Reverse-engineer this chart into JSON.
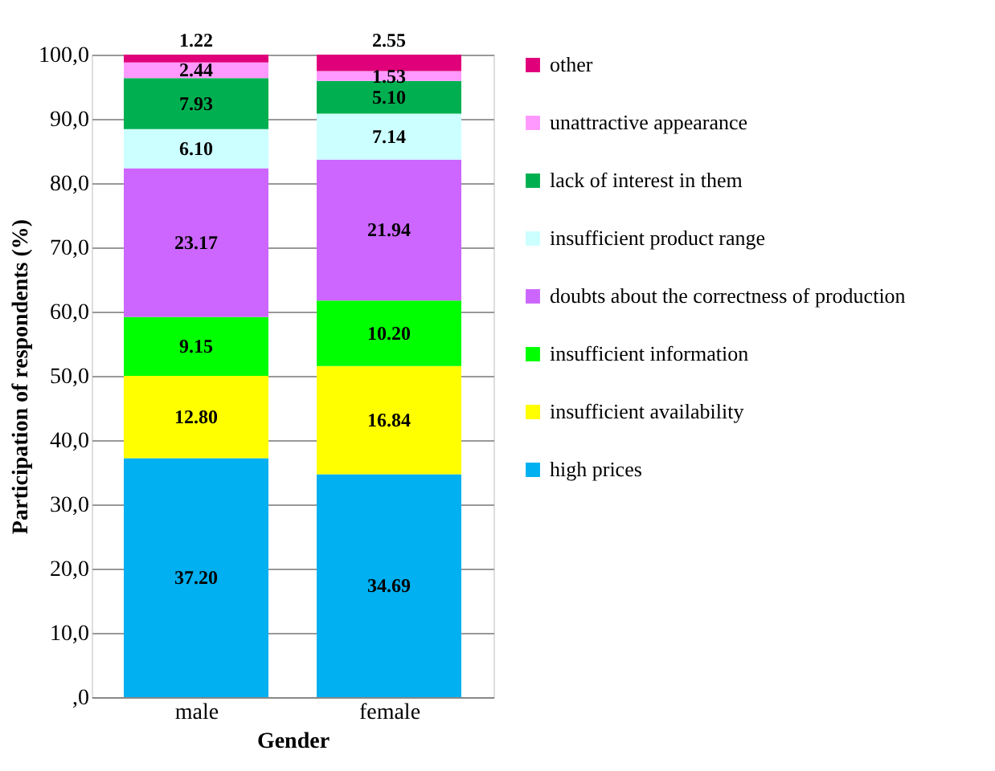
{
  "chart_data": {
    "type": "bar",
    "stacked": true,
    "xlabel": "Gender",
    "ylabel": "Participation of respondents (%)",
    "categories": [
      "male",
      "female"
    ],
    "series": [
      {
        "name": "high prices",
        "color": "#00b0f0",
        "values": [
          37.2,
          34.69
        ],
        "value_labels": [
          "37.20",
          "34.69"
        ]
      },
      {
        "name": "insufficient availability",
        "color": "#ffff00",
        "values": [
          12.8,
          16.84
        ],
        "value_labels": [
          "12.80",
          "16.84"
        ]
      },
      {
        "name": "insufficient information",
        "color": "#00ff00",
        "values": [
          9.15,
          10.2
        ],
        "value_labels": [
          "9.15",
          "10.20"
        ]
      },
      {
        "name": "doubts about the correctness of production",
        "color": "#cc66ff",
        "values": [
          23.17,
          21.94
        ],
        "value_labels": [
          "23.17",
          "21.94"
        ]
      },
      {
        "name": "insufficient product range",
        "color": "#ccffff",
        "values": [
          6.1,
          7.14
        ],
        "value_labels": [
          "6.10",
          "7.14"
        ]
      },
      {
        "name": "lack of interest in them",
        "color": "#00b050",
        "values": [
          7.93,
          5.1
        ],
        "value_labels": [
          "7.93",
          "5.10"
        ]
      },
      {
        "name": "unattractive appearance",
        "color": "#ff99ff",
        "values": [
          2.44,
          1.53
        ],
        "value_labels": [
          "2.44",
          "1.53"
        ]
      },
      {
        "name": "other",
        "color": "#e0007a",
        "values": [
          1.22,
          2.55
        ],
        "value_labels": [
          "1.22",
          "2.55"
        ]
      }
    ],
    "ylim": [
      0,
      100
    ],
    "yticks": [
      {
        "value": 0,
        "label": ",0"
      },
      {
        "value": 10,
        "label": "10,0"
      },
      {
        "value": 20,
        "label": "20,0"
      },
      {
        "value": 30,
        "label": "30,0"
      },
      {
        "value": 40,
        "label": "40,0"
      },
      {
        "value": 50,
        "label": "50,0"
      },
      {
        "value": 60,
        "label": "60,0"
      },
      {
        "value": 70,
        "label": "70,0"
      },
      {
        "value": 80,
        "label": "80,0"
      },
      {
        "value": 90,
        "label": "90,0"
      },
      {
        "value": 100,
        "label": "100,0"
      }
    ],
    "grid": "y",
    "legend": "right"
  }
}
